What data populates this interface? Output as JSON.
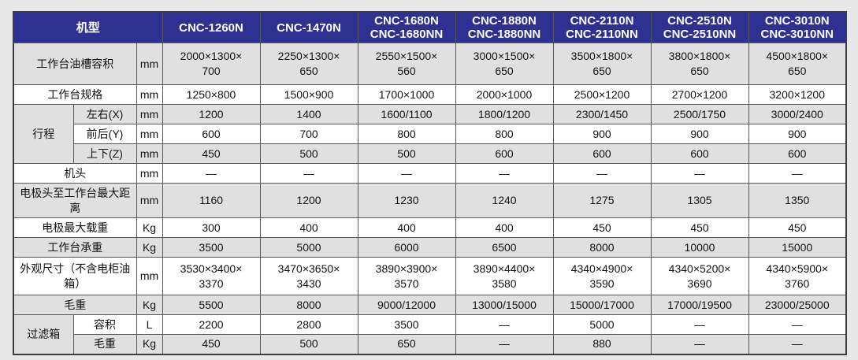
{
  "colors": {
    "page_background": "#e8e8e8",
    "header_background": "#2e3192",
    "header_text": "#ffffff",
    "stripe_gray": "#e0e0e0",
    "row_white": "#ffffff",
    "border": "#55565c"
  },
  "table": {
    "corner_label": "机型",
    "model_columns": [
      "CNC-1260N",
      "CNC-1470N",
      "CNC-1680N\nCNC-1680NN",
      "CNC-1880N\nCNC-1880NN",
      "CNC-2110N\nCNC-2110NN",
      "CNC-2510N\nCNC-2510NN",
      "CNC-3010N\nCNC-3010NN"
    ],
    "rows": [
      {
        "label": "工作台油槽容积",
        "unit": "mm",
        "values": [
          "2000×1300×\n700",
          "2250×1300×\n650",
          "2550×1500×\n560",
          "3000×1500×\n650",
          "3500×1800×\n650",
          "3800×1800×\n650",
          "4500×1800×\n650"
        ]
      },
      {
        "label": "工作台规格",
        "unit": "mm",
        "values": [
          "1250×800",
          "1500×900",
          "1700×1000",
          "2000×1000",
          "2500×1200",
          "2700×1200",
          "3200×1200"
        ]
      },
      {
        "group": "行程",
        "group_rowspan": 3,
        "label": "左右(X)",
        "unit": "mm",
        "values": [
          "1200",
          "1400",
          "1600/1100",
          "1800/1200",
          "2300/1450",
          "2500/1750",
          "3000/2400"
        ]
      },
      {
        "sub": true,
        "label": "前后(Y)",
        "unit": "mm",
        "values": [
          "600",
          "700",
          "800",
          "800",
          "900",
          "900",
          "900"
        ]
      },
      {
        "sub": true,
        "label": "上下(Z)",
        "unit": "mm",
        "values": [
          "450",
          "500",
          "500",
          "600",
          "600",
          "600",
          "600"
        ]
      },
      {
        "label": "机头",
        "unit": "mm",
        "values": [
          "—",
          "—",
          "—",
          "—",
          "—",
          "—",
          "—"
        ]
      },
      {
        "label": "电极头至工作台最大距离",
        "unit": "mm",
        "values": [
          "1160",
          "1200",
          "1230",
          "1240",
          "1275",
          "1305",
          "1350"
        ]
      },
      {
        "label": "电极最大载重",
        "unit": "Kg",
        "values": [
          "300",
          "400",
          "400",
          "400",
          "450",
          "450",
          "450"
        ]
      },
      {
        "label": "工作台承重",
        "unit": "Kg",
        "values": [
          "3500",
          "5000",
          "6000",
          "6500",
          "8000",
          "10000",
          "15000"
        ]
      },
      {
        "label": "外观尺寸（不含电柜油箱）",
        "unit": "mm",
        "values": [
          "3530×3400×\n3370",
          "3470×3650×\n3430",
          "3890×3900×\n3570",
          "3890×4400×\n3580",
          "4340×4900×\n3590",
          "4340×5200×\n3690",
          "4340×5900×\n3760"
        ]
      },
      {
        "label": "毛重",
        "unit": "Kg",
        "values": [
          "5500",
          "8000",
          "9000/12000",
          "13000/15000",
          "15000/17000",
          "17000/19500",
          "23000/25000"
        ]
      },
      {
        "group": "过滤箱",
        "group_rowspan": 2,
        "label": "容积",
        "unit": "L",
        "values": [
          "2200",
          "2800",
          "3500",
          "—",
          "5000",
          "—",
          "—"
        ]
      },
      {
        "sub": true,
        "label": "毛重",
        "unit": "Kg",
        "values": [
          "450",
          "500",
          "650",
          "—",
          "880",
          "—",
          "—"
        ]
      }
    ]
  }
}
